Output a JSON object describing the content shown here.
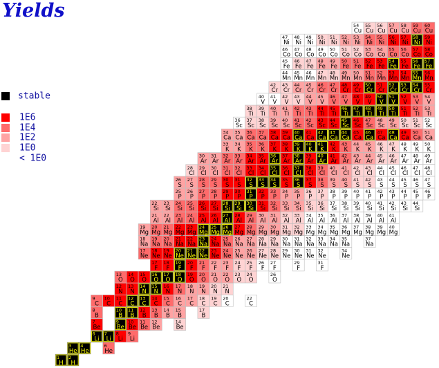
{
  "header": {
    "title": "Yields"
  },
  "legend": [
    {
      "label": "stable",
      "color": "#000000"
    },
    {
      "label": "1E6",
      "color": "#ff0000"
    },
    {
      "label": "1E4",
      "color": "#ff6b6b"
    },
    {
      "label": "1E2",
      "color": "#ffa3a3"
    },
    {
      "label": "1E0",
      "color": "#ffd3d3"
    },
    {
      "label": "< 1E0",
      "color": "#ffffff"
    }
  ],
  "elements": [
    {
      "symbol": "H",
      "masses": [
        1,
        2
      ],
      "levels": [
        0,
        0
      ]
    },
    {
      "symbol": "He",
      "masses": [
        3,
        4,
        6
      ],
      "levels": [
        0,
        0,
        2
      ]
    },
    {
      "symbol": "Li",
      "masses": [
        6,
        7,
        8,
        9
      ],
      "levels": [
        0,
        0,
        1,
        2
      ]
    },
    {
      "symbol": "Be",
      "masses": [
        7,
        9,
        10,
        11,
        12,
        14
      ],
      "levels": [
        1,
        0,
        1,
        2,
        3,
        4
      ]
    },
    {
      "symbol": "B",
      "masses": [
        8,
        10,
        11,
        12,
        13,
        14,
        15,
        17
      ],
      "levels": [
        2,
        0,
        0,
        1,
        2,
        3,
        3,
        4
      ]
    },
    {
      "symbol": "C",
      "masses": [
        9,
        10,
        11,
        12,
        13,
        14,
        15,
        16,
        17,
        18,
        19,
        20,
        22
      ],
      "levels": [
        2,
        1,
        1,
        0,
        0,
        1,
        2,
        3,
        3,
        4,
        4,
        5,
        5
      ]
    },
    {
      "symbol": "N",
      "masses": [
        12,
        13,
        14,
        15,
        16,
        17,
        18,
        19,
        20,
        21
      ],
      "levels": [
        1,
        1,
        0,
        0,
        1,
        2,
        3,
        3,
        4,
        4
      ]
    },
    {
      "symbol": "O",
      "masses": [
        13,
        14,
        15,
        16,
        17,
        18,
        19,
        20,
        21,
        22,
        23,
        24,
        26
      ],
      "levels": [
        2,
        1,
        1,
        0,
        0,
        0,
        1,
        2,
        3,
        3,
        4,
        4,
        5
      ]
    },
    {
      "symbol": "F",
      "masses": [
        17,
        18,
        19,
        20,
        21,
        22,
        23,
        24,
        25,
        26,
        27,
        29,
        31
      ],
      "levels": [
        1,
        1,
        0,
        1,
        2,
        3,
        3,
        4,
        4,
        5,
        5,
        5,
        5
      ]
    },
    {
      "symbol": "Ne",
      "masses": [
        17,
        18,
        19,
        20,
        21,
        22,
        23,
        24,
        25,
        26,
        27,
        28,
        29,
        30,
        31,
        32,
        34
      ],
      "levels": [
        2,
        1,
        1,
        0,
        0,
        0,
        1,
        2,
        3,
        3,
        4,
        4,
        5,
        5,
        5,
        5,
        5
      ]
    },
    {
      "symbol": "Na",
      "masses": [
        18,
        19,
        20,
        21,
        22,
        23,
        24,
        25,
        26,
        27,
        28,
        29,
        30,
        31,
        32,
        33,
        34,
        35,
        37
      ],
      "levels": [
        3,
        2,
        2,
        1,
        1,
        0,
        1,
        2,
        3,
        3,
        4,
        4,
        5,
        5,
        5,
        5,
        5,
        5,
        5
      ]
    },
    {
      "symbol": "Mg",
      "masses": [
        19,
        20,
        21,
        22,
        23,
        24,
        25,
        26,
        27,
        28,
        29,
        30,
        31,
        32,
        33,
        34,
        35,
        36,
        37,
        38,
        39,
        40
      ],
      "levels": [
        3,
        2,
        2,
        1,
        1,
        0,
        0,
        0,
        1,
        2,
        3,
        3,
        4,
        4,
        5,
        5,
        5,
        5,
        5,
        5,
        5,
        5
      ]
    },
    {
      "symbol": "Al",
      "masses": [
        21,
        22,
        23,
        24,
        25,
        26,
        27,
        28,
        29,
        30,
        31,
        32,
        33,
        34,
        35,
        36,
        37,
        38,
        39,
        40,
        41
      ],
      "levels": [
        3,
        3,
        2,
        2,
        1,
        1,
        0,
        1,
        2,
        3,
        3,
        4,
        4,
        5,
        5,
        5,
        5,
        5,
        5,
        5,
        5
      ]
    },
    {
      "symbol": "Si",
      "masses": [
        22,
        23,
        24,
        25,
        26,
        27,
        28,
        29,
        30,
        31,
        32,
        33,
        34,
        35,
        36,
        37,
        38,
        39,
        40,
        41,
        42,
        43,
        44
      ],
      "levels": [
        3,
        3,
        2,
        2,
        1,
        1,
        0,
        0,
        0,
        1,
        2,
        3,
        3,
        4,
        4,
        5,
        5,
        5,
        5,
        5,
        5,
        5,
        5
      ]
    },
    {
      "symbol": "P",
      "masses": [
        25,
        26,
        27,
        28,
        29,
        30,
        31,
        32,
        33,
        34,
        35,
        36,
        37,
        38,
        39,
        40,
        41,
        42,
        43,
        44,
        45,
        46
      ],
      "levels": [
        3,
        3,
        2,
        2,
        1,
        1,
        0,
        1,
        2,
        3,
        3,
        4,
        4,
        5,
        5,
        5,
        5,
        5,
        5,
        5,
        5,
        5
      ]
    },
    {
      "symbol": "S",
      "masses": [
        26,
        27,
        28,
        29,
        30,
        31,
        32,
        33,
        34,
        35,
        36,
        37,
        38,
        39,
        40,
        41,
        42,
        43,
        44,
        45,
        46,
        47
      ],
      "levels": [
        3,
        3,
        2,
        2,
        1,
        1,
        0,
        0,
        0,
        1,
        0,
        1,
        2,
        3,
        3,
        4,
        4,
        5,
        5,
        5,
        5,
        5
      ]
    },
    {
      "symbol": "Cl",
      "masses": [
        28,
        29,
        30,
        31,
        32,
        33,
        34,
        35,
        36,
        37,
        38,
        39,
        40,
        41,
        42,
        43,
        44,
        45,
        46,
        47,
        48
      ],
      "levels": [
        4,
        3,
        3,
        2,
        2,
        1,
        1,
        0,
        1,
        0,
        1,
        2,
        3,
        3,
        4,
        4,
        5,
        5,
        5,
        5,
        5
      ]
    },
    {
      "symbol": "Ar",
      "masses": [
        30,
        31,
        32,
        33,
        34,
        35,
        36,
        37,
        38,
        39,
        40,
        41,
        42,
        43,
        44,
        45,
        46,
        47,
        48,
        49
      ],
      "levels": [
        3,
        3,
        2,
        2,
        1,
        1,
        0,
        1,
        0,
        1,
        0,
        1,
        2,
        3,
        3,
        4,
        4,
        5,
        5,
        5
      ]
    },
    {
      "symbol": "K",
      "masses": [
        33,
        34,
        35,
        36,
        37,
        38,
        39,
        40,
        41,
        42,
        43,
        44,
        45,
        46,
        47,
        48,
        49,
        50
      ],
      "levels": [
        3,
        3,
        2,
        2,
        1,
        1,
        0,
        0,
        0,
        1,
        2,
        3,
        3,
        4,
        4,
        5,
        5,
        5
      ]
    },
    {
      "symbol": "Ca",
      "masses": [
        34,
        35,
        36,
        37,
        38,
        39,
        40,
        41,
        42,
        43,
        44,
        45,
        46,
        47,
        48,
        49,
        50,
        51
      ],
      "levels": [
        3,
        3,
        2,
        2,
        1,
        1,
        0,
        1,
        0,
        0,
        0,
        1,
        0,
        1,
        0,
        1,
        2,
        3
      ]
    },
    {
      "symbol": "Sc",
      "masses": [
        36,
        37,
        38,
        39,
        40,
        41,
        42,
        43,
        44,
        45,
        46,
        47,
        48,
        49,
        50,
        51,
        52
      ],
      "levels": [
        5,
        4,
        4,
        3,
        3,
        2,
        2,
        1,
        1,
        0,
        1,
        2,
        3,
        3,
        4,
        4,
        5
      ]
    },
    {
      "symbol": "Ti",
      "masses": [
        38,
        39,
        40,
        41,
        42,
        43,
        44,
        45,
        46,
        47,
        48,
        49,
        50,
        51,
        52,
        53
      ],
      "levels": [
        4,
        4,
        3,
        3,
        2,
        2,
        1,
        1,
        0,
        0,
        0,
        0,
        0,
        1,
        2,
        3
      ]
    },
    {
      "symbol": "V",
      "masses": [
        40,
        41,
        42,
        43,
        44,
        45,
        46,
        47,
        48,
        49,
        50,
        51,
        52,
        53,
        54
      ],
      "levels": [
        5,
        5,
        4,
        4,
        3,
        3,
        2,
        2,
        1,
        1,
        0,
        0,
        1,
        2,
        3
      ]
    },
    {
      "symbol": "Cr",
      "masses": [
        42,
        43,
        44,
        45,
        46,
        47,
        48,
        49,
        50,
        51,
        52,
        53,
        54,
        55
      ],
      "levels": [
        4,
        4,
        3,
        3,
        2,
        2,
        1,
        1,
        0,
        1,
        0,
        0,
        0,
        1
      ]
    },
    {
      "symbol": "Mn",
      "masses": [
        44,
        45,
        46,
        47,
        48,
        49,
        50,
        51,
        52,
        53,
        54,
        55,
        56
      ],
      "levels": [
        5,
        5,
        5,
        4,
        4,
        3,
        3,
        2,
        2,
        1,
        1,
        0,
        1
      ]
    },
    {
      "symbol": "Fe",
      "masses": [
        45,
        46,
        47,
        48,
        49,
        50,
        51,
        52,
        53,
        54,
        55,
        56,
        57
      ],
      "levels": [
        5,
        4,
        4,
        3,
        3,
        2,
        2,
        1,
        1,
        0,
        1,
        0,
        0
      ]
    },
    {
      "symbol": "Co",
      "masses": [
        46,
        47,
        48,
        49,
        50,
        51,
        52,
        53,
        54,
        55,
        56,
        57,
        58
      ],
      "levels": [
        5,
        5,
        5,
        5,
        5,
        4,
        4,
        3,
        3,
        2,
        2,
        1,
        1
      ]
    },
    {
      "symbol": "Ni",
      "masses": [
        47,
        48,
        49,
        50,
        51,
        52,
        53,
        54,
        55,
        56,
        57,
        58,
        59
      ],
      "levels": [
        5,
        5,
        5,
        4,
        4,
        3,
        3,
        2,
        2,
        1,
        1,
        0,
        1
      ]
    },
    {
      "symbol": "Cu",
      "masses": [
        54,
        55,
        56,
        57,
        58,
        59,
        60
      ],
      "levels": [
        5,
        4,
        4,
        3,
        3,
        2,
        2
      ]
    }
  ]
}
